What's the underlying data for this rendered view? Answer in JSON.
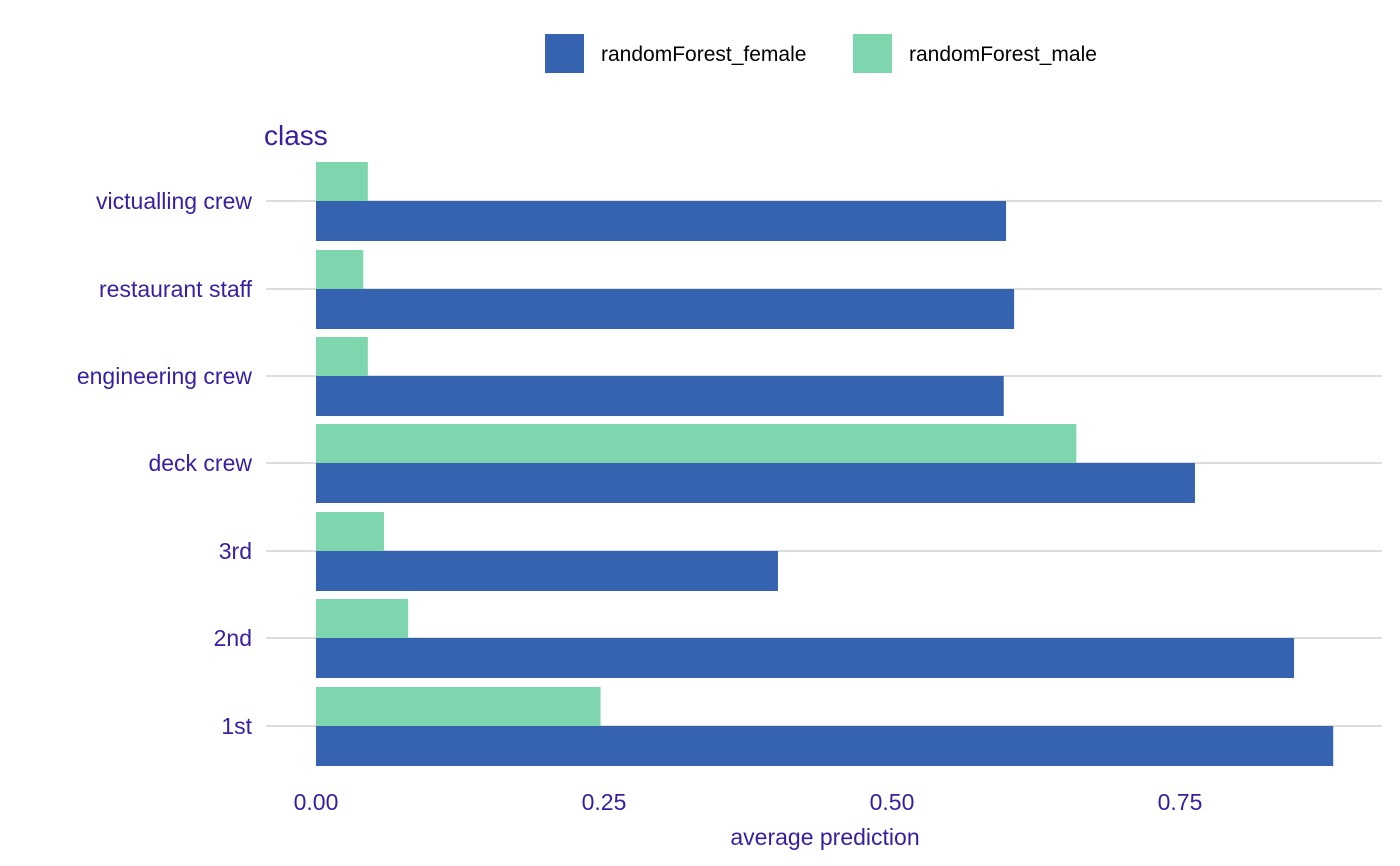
{
  "chart_data": {
    "type": "bar",
    "orientation": "horizontal",
    "title": "",
    "facet_label": "class",
    "xlabel": "average prediction",
    "ylabel": "",
    "xlim": [
      0,
      0.9
    ],
    "x_ticks": [
      0.0,
      0.25,
      0.5,
      0.75
    ],
    "x_tick_labels": [
      "0.00",
      "0.25",
      "0.50",
      "0.75"
    ],
    "grid": true,
    "legend_position": "top",
    "categories": [
      "victualling crew",
      "restaurant staff",
      "engineering crew",
      "deck crew",
      "3rd",
      "2nd",
      "1st"
    ],
    "series": [
      {
        "name": "randomForest_female",
        "color": "#3563b0",
        "values": [
          0.599,
          0.606,
          0.597,
          0.763,
          0.401,
          0.849,
          0.883
        ]
      },
      {
        "name": "randomForest_male",
        "color": "#7dd6ad",
        "values": [
          0.045,
          0.041,
          0.045,
          0.66,
          0.059,
          0.08,
          0.247
        ]
      }
    ]
  },
  "colors": {
    "axis_text": "#371ea3",
    "grid": "#dcdcdc",
    "background": "#ffffff"
  }
}
